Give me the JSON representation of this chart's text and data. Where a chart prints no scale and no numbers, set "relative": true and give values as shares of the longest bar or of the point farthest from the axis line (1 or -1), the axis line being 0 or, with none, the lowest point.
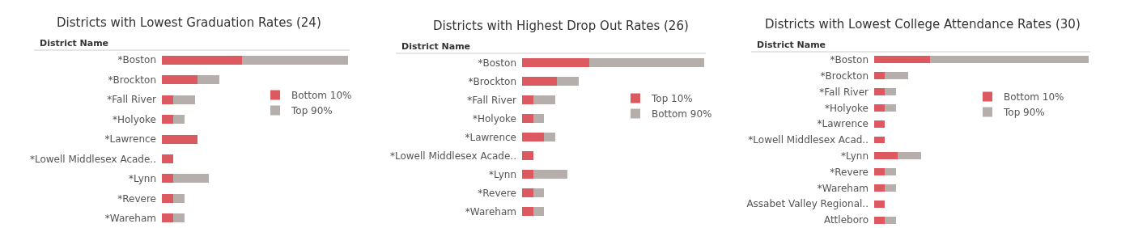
{
  "chart_data": [
    {
      "type": "bar",
      "orientation": "horizontal",
      "stacked": true,
      "relative": true,
      "title": "Districts with Lowest Graduation Rates (24)",
      "ylabel": "District Name",
      "tick_labels": "y",
      "legend": "right",
      "categories": [
        "*Boston",
        "*Brockton",
        "*Fall River",
        "*Holyoke",
        "*Lawrence",
        "*Lowell Middlesex Acade..",
        "*Lynn",
        "*Revere",
        "*Wareham"
      ],
      "series": [
        {
          "name": "Bottom 10%",
          "color": "#dc5a5f",
          "values": [
            0.43,
            0.19,
            0.06,
            0.06,
            0.19,
            0.06,
            0.06,
            0.06,
            0.06
          ]
        },
        {
          "name": "Top 90%",
          "color": "#b6aeab",
          "values": [
            0.57,
            0.12,
            0.12,
            0.06,
            0,
            0,
            0.19,
            0.06,
            0.06
          ]
        }
      ]
    },
    {
      "type": "bar",
      "orientation": "horizontal",
      "stacked": true,
      "relative": true,
      "title": "Districts with Highest Drop Out Rates (26)",
      "ylabel": "District Name",
      "tick_labels": "y",
      "legend": "right",
      "categories": [
        "*Boston",
        "*Brockton",
        "*Fall River",
        "*Holyoke",
        "*Lawrence",
        "*Lowell Middlesex Acade..",
        "*Lynn",
        "*Revere",
        "*Wareham"
      ],
      "series": [
        {
          "name": "Top 10%",
          "color": "#dc5a5f",
          "values": [
            0.37,
            0.19,
            0.06,
            0.06,
            0.12,
            0.06,
            0.06,
            0.06,
            0.06
          ]
        },
        {
          "name": "Bottom 90%",
          "color": "#b6aeab",
          "values": [
            0.63,
            0.12,
            0.12,
            0.06,
            0.06,
            0,
            0.19,
            0.06,
            0.06
          ]
        }
      ]
    },
    {
      "type": "bar",
      "orientation": "horizontal",
      "stacked": true,
      "relative": true,
      "title": "Districts with Lowest College Attendance Rates (30)",
      "ylabel": "District Name",
      "tick_labels": "y",
      "legend": "right",
      "categories": [
        "*Boston",
        "*Brockton",
        "*Fall River",
        "*Holyoke",
        "*Lawrence",
        "*Lowell Middlesex Acad..",
        "*Lynn",
        "*Revere",
        "*Wareham",
        "Assabet Valley Regional..",
        "Attleboro"
      ],
      "series": [
        {
          "name": "Bottom 10%",
          "color": "#dc5a5f",
          "values": [
            0.26,
            0.05,
            0.05,
            0.05,
            0.05,
            0.05,
            0.11,
            0.05,
            0.05,
            0.05,
            0.05
          ]
        },
        {
          "name": "Top 90%",
          "color": "#b6aeab",
          "values": [
            0.74,
            0.11,
            0.05,
            0.05,
            0,
            0,
            0.11,
            0.05,
            0.05,
            0,
            0.05
          ]
        }
      ]
    }
  ]
}
